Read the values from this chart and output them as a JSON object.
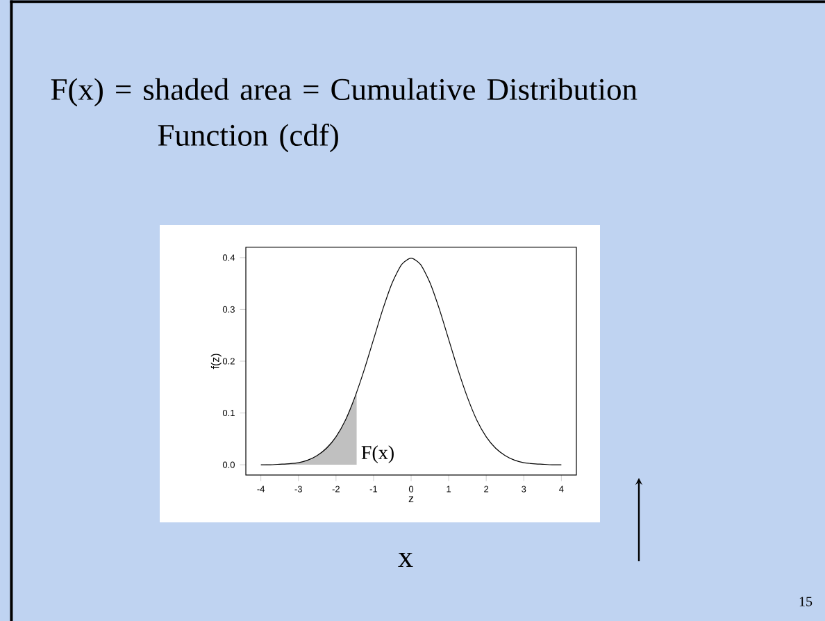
{
  "chart_data": {
    "type": "line",
    "title": "F(x) = shaded area = Cumulative Distribution Function (cdf)",
    "xlabel": "z",
    "ylabel": "f(z)",
    "series": [
      {
        "color": "#000000",
        "x": [
          -4,
          -3.75,
          -3.5,
          -3.25,
          -3,
          -2.75,
          -2.5,
          -2.25,
          -2,
          -1.75,
          -1.5,
          -1.25,
          -1,
          -0.75,
          -0.5,
          -0.25,
          0,
          0.25,
          0.5,
          0.75,
          1,
          1.25,
          1.5,
          1.75,
          2,
          2.25,
          2.5,
          2.75,
          3,
          3.25,
          3.5,
          3.75,
          4
        ],
        "values": [
          0.0,
          0.0,
          0.001,
          0.002,
          0.004,
          0.009,
          0.018,
          0.032,
          0.054,
          0.086,
          0.13,
          0.183,
          0.242,
          0.301,
          0.352,
          0.387,
          0.399,
          0.387,
          0.352,
          0.301,
          0.242,
          0.183,
          0.13,
          0.086,
          0.054,
          0.032,
          0.018,
          0.009,
          0.004,
          0.002,
          0.001,
          0.0,
          0.0
        ]
      },
      {
        "type": "area",
        "color": "#c0c0c0",
        "x": [
          -4,
          -3.5,
          -3,
          -2.5,
          -2,
          -1.75,
          -1.45
        ],
        "values": [
          0.0,
          0.001,
          0.004,
          0.018,
          0.054,
          0.086,
          0.139
        ]
      }
    ],
    "xlim": [
      -4.4,
      4.4
    ],
    "ylim": [
      -0.02,
      0.42
    ],
    "xticks": [
      -4,
      -3,
      -2,
      -1,
      0,
      1,
      2,
      3,
      4
    ],
    "yticks": [
      {
        "value": 0,
        "label": "0.0"
      },
      {
        "value": 0.1,
        "label": "0.1"
      },
      {
        "value": 0.2,
        "label": "0.2"
      },
      {
        "value": 0.3,
        "label": "0.3"
      },
      {
        "value": 0.4,
        "label": "0.4"
      }
    ],
    "annotations": [
      "F(x)",
      "x",
      "15"
    ]
  }
}
